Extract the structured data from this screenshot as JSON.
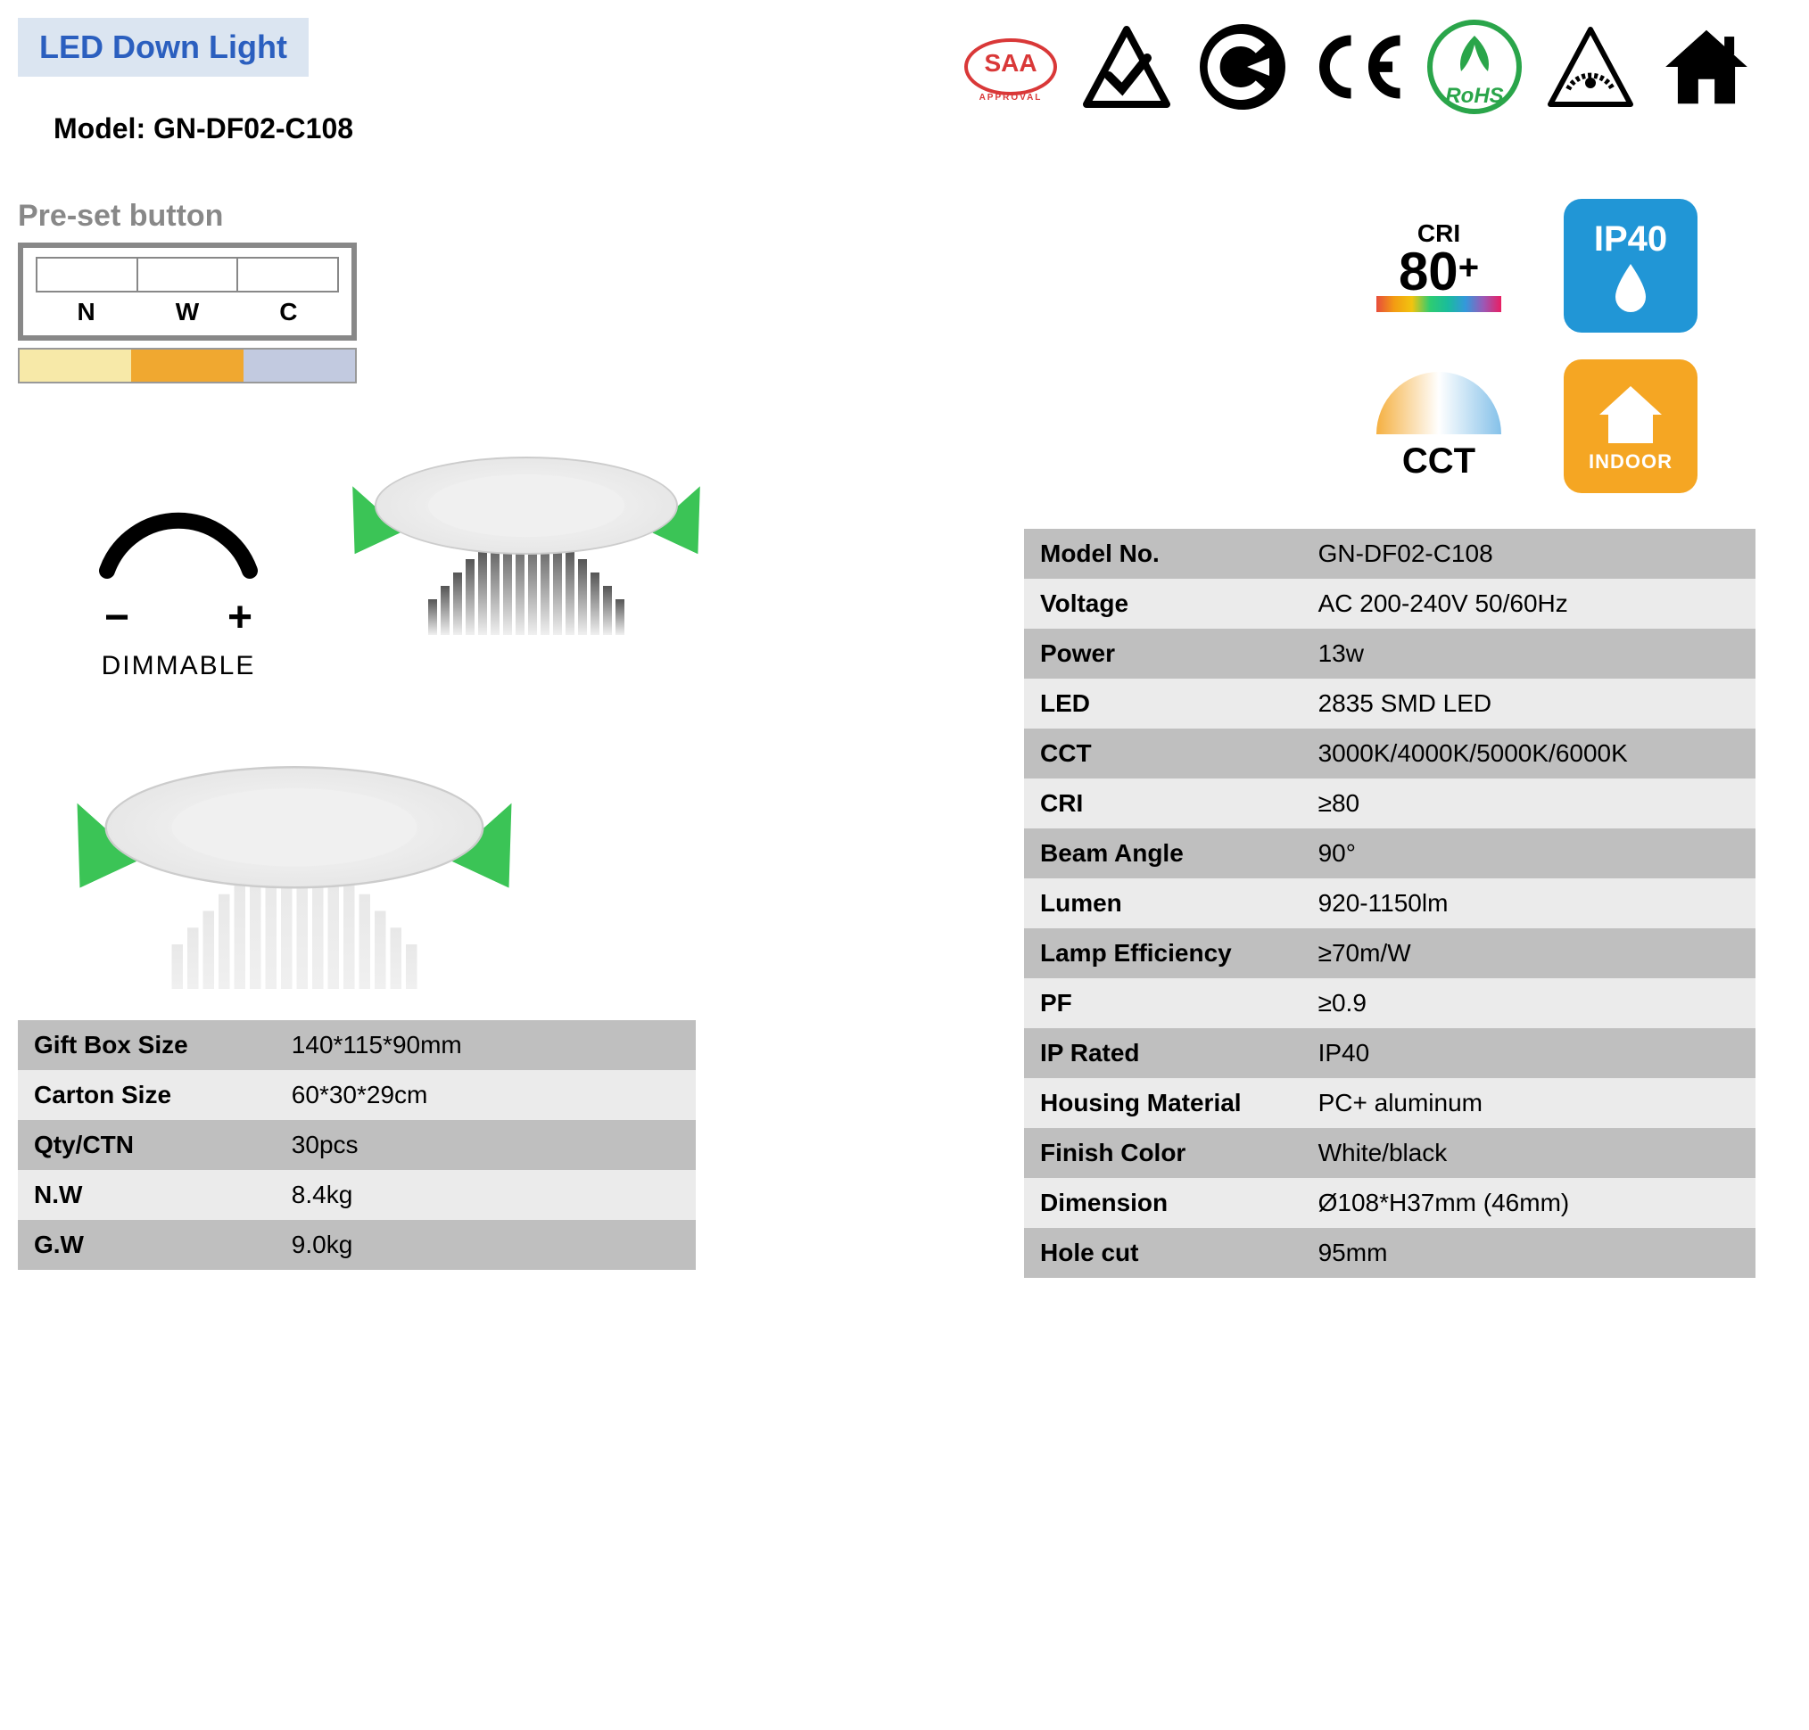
{
  "header": {
    "tag_text": "LED Down Light",
    "tag_bg": "#dbe5f1",
    "tag_color": "#2b5fbf",
    "model_prefix": "Model: ",
    "model": "GN-DF02-C108"
  },
  "certifications": [
    {
      "name": "saa",
      "label": "SAA",
      "sub": "APPROVAL",
      "color": "#d93838"
    },
    {
      "name": "rcm",
      "label": "✓",
      "shape": "triangle"
    },
    {
      "name": "ctick",
      "label": "✓",
      "shape": "circle-black"
    },
    {
      "name": "ce",
      "label": "CE"
    },
    {
      "name": "rohs",
      "label": "RoHS",
      "color": "#2aa54a"
    },
    {
      "name": "dimmable-tri",
      "label": "",
      "shape": "triangle-dot"
    },
    {
      "name": "house",
      "label": "",
      "shape": "house"
    }
  ],
  "preset": {
    "title": "Pre-set button",
    "letters": [
      "N",
      "W",
      "C"
    ],
    "colors": [
      "#f7e9a8",
      "#f0a830",
      "#c2cae0"
    ]
  },
  "dimmable": {
    "minus": "−",
    "plus": "+",
    "label": "DIMMABLE"
  },
  "badges": {
    "cri": {
      "top": "CRI",
      "value": "80",
      "plus": "+"
    },
    "ip": {
      "label": "IP40",
      "drop": "💧",
      "bg": "#2196d6"
    },
    "cct": {
      "label": "CCT"
    },
    "indoor": {
      "label": "INDOOR",
      "bg": "#f5a623"
    }
  },
  "spec_table": {
    "row_dark_bg": "#bfbfbf",
    "row_light_bg": "#ebebeb",
    "rows": [
      {
        "k": "Model No.",
        "v": "GN-DF02-C108"
      },
      {
        "k": "Voltage",
        "v": "AC 200-240V  50/60Hz"
      },
      {
        "k": "Power",
        "v": "13w"
      },
      {
        "k": "LED",
        "v": "2835 SMD LED"
      },
      {
        "k": "CCT",
        "v": "3000K/4000K/5000K/6000K"
      },
      {
        "k": "CRI",
        "v": "≥80"
      },
      {
        "k": "Beam Angle",
        "v": "90°"
      },
      {
        "k": "Lumen",
        "v": "920-1150lm"
      },
      {
        "k": "Lamp Efficiency",
        "v": "≥70m/W"
      },
      {
        "k": "PF",
        "v": "≥0.9"
      },
      {
        "k": "IP Rated",
        "v": "IP40"
      },
      {
        "k": "Housing Material",
        "v": "PC+ aluminum"
      },
      {
        "k": "Finish Color",
        "v": "White/black"
      },
      {
        "k": "Dimension",
        "v": "Ø108*H37mm (46mm)"
      },
      {
        "k": "Hole cut",
        "v": "95mm"
      }
    ]
  },
  "pack_table": {
    "rows": [
      {
        "k": "Gift Box Size",
        "v": "140*115*90mm"
      },
      {
        "k": "Carton Size",
        "v": "60*30*29cm"
      },
      {
        "k": "Qty/CTN",
        "v": "30pcs"
      },
      {
        "k": "N.W",
        "v": "8.4kg"
      },
      {
        "k": "G.W",
        "v": "9.0kg"
      }
    ]
  },
  "downlight_black_fins": "#555555",
  "downlight_white_fins": "#e8e8e8"
}
